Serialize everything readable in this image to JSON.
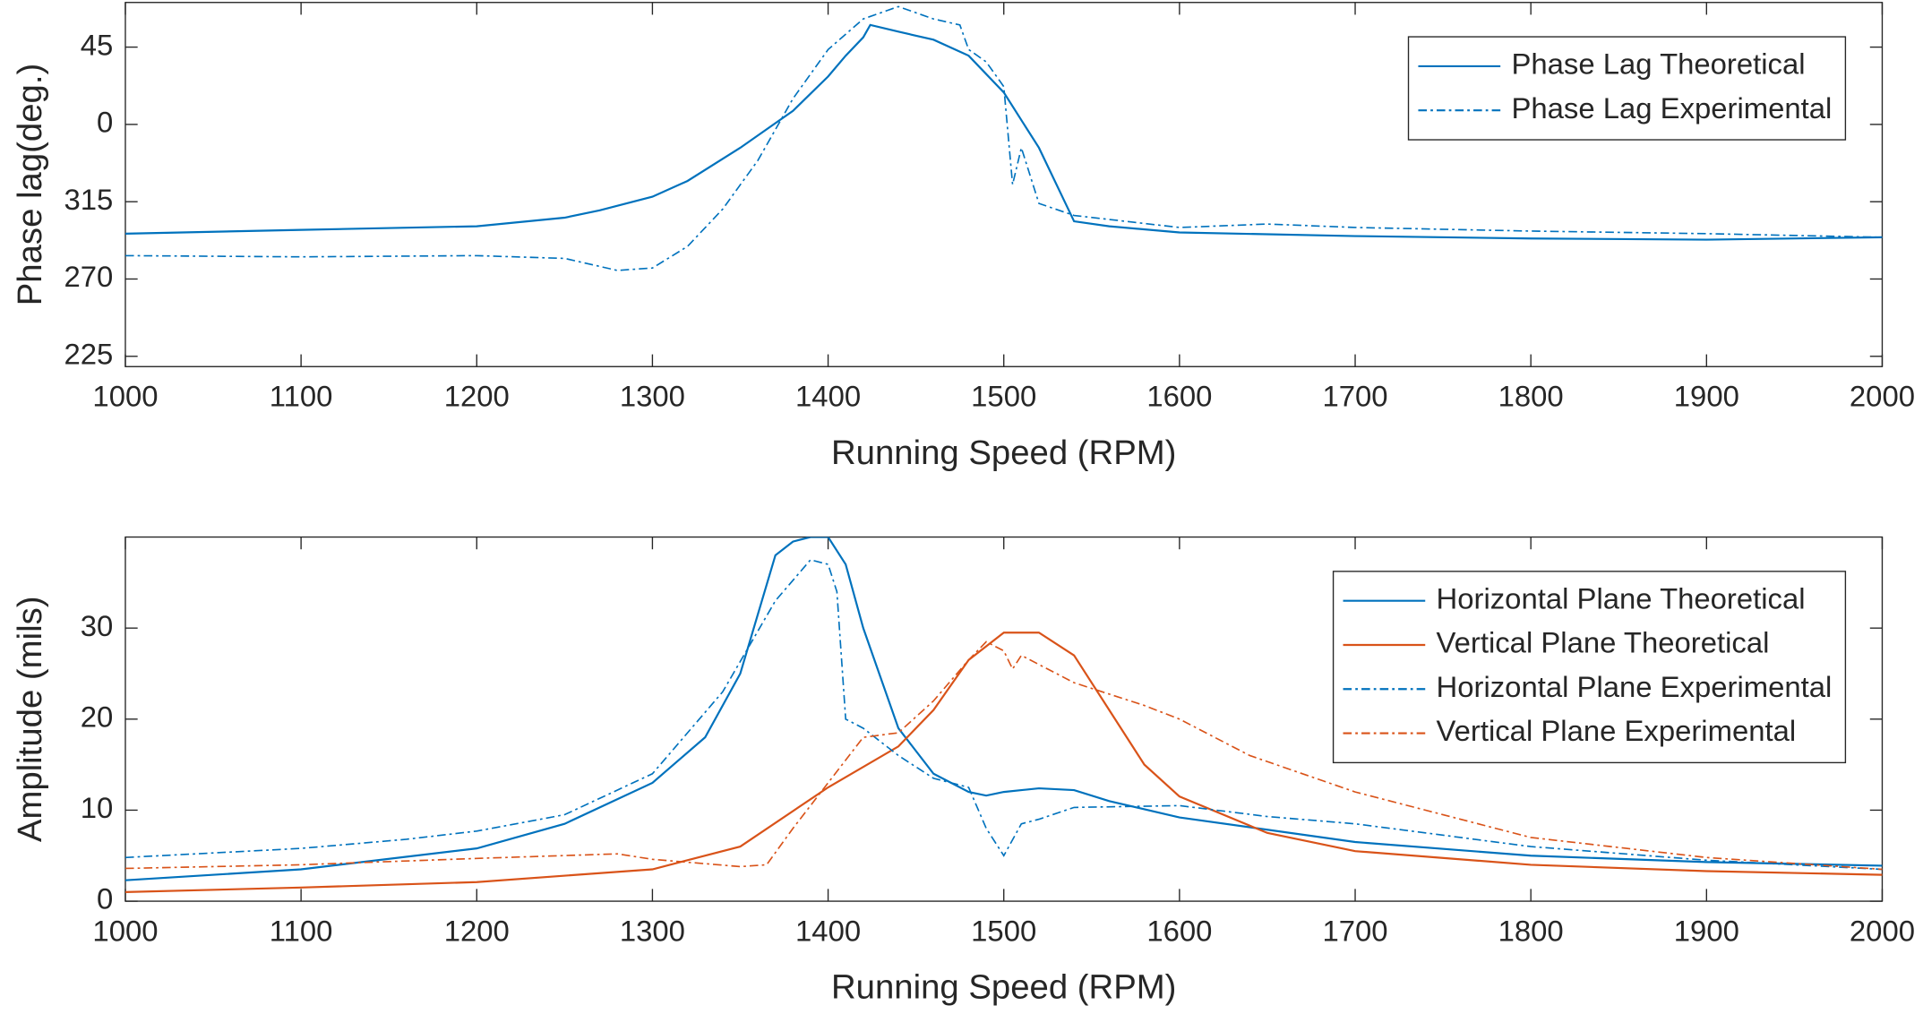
{
  "chart_data": [
    {
      "type": "line",
      "ylabel": "Phase lag(deg.)",
      "xlabel": "Running Speed (RPM)",
      "xlim": [
        1000,
        2000
      ],
      "xticks": [
        1000,
        1100,
        1200,
        1300,
        1400,
        1500,
        1600,
        1700,
        1800,
        1900,
        2000
      ],
      "ylim": [
        219,
        431
      ],
      "yticks": [
        225,
        270,
        315,
        {
          "value": 360,
          "label": "0"
        },
        {
          "value": 405,
          "label": "45"
        }
      ],
      "grid": false,
      "legend": "upper right",
      "series": [
        {
          "name": "Phase Lag Theoretical",
          "color": "#0072bd",
          "style": "solid",
          "x": [
            1000,
            1100,
            1200,
            1250,
            1270,
            1300,
            1320,
            1350,
            1380,
            1400,
            1410,
            1420,
            1424,
            1440,
            1460,
            1480,
            1500,
            1520,
            1540,
            1560,
            1600,
            1700,
            1800,
            1900,
            2000
          ],
          "values": [
            296.4,
            298.6,
            300.7,
            305.7,
            310,
            317.9,
            327.1,
            346.4,
            367.9,
            387.9,
            400,
            410.7,
            417.9,
            414,
            409.3,
            400,
            378.6,
            346.4,
            303.6,
            300.7,
            297.1,
            295,
            293.6,
            292.9,
            294.3
          ]
        },
        {
          "name": "Phase Lag Experimental",
          "color": "#0072bd",
          "style": "dashdot",
          "x": [
            1000,
            1100,
            1200,
            1250,
            1280,
            1300,
            1320,
            1340,
            1360,
            1380,
            1400,
            1420,
            1440,
            1460,
            1475,
            1480,
            1490,
            1500,
            1505,
            1510,
            1520,
            1540,
            1600,
            1650,
            1700,
            1800,
            1900,
            2000
          ],
          "values": [
            283.6,
            282.9,
            283.6,
            282,
            275,
            276.4,
            289,
            310.7,
            339,
            375,
            403.6,
            421.4,
            428.6,
            421.4,
            417.9,
            403.6,
            396.4,
            382,
            325,
            346.4,
            314,
            307,
            300,
            302,
            300,
            297.9,
            296.4,
            294.3
          ]
        }
      ]
    },
    {
      "type": "line",
      "ylabel": "Amplitude (mils)",
      "xlabel": "Running Speed (RPM)",
      "xlim": [
        1000,
        2000
      ],
      "xticks": [
        1000,
        1100,
        1200,
        1300,
        1400,
        1500,
        1600,
        1700,
        1800,
        1900,
        2000
      ],
      "ylim": [
        0,
        40
      ],
      "yticks": [
        0,
        10,
        20,
        30
      ],
      "grid": false,
      "legend": "upper right",
      "series": [
        {
          "name": "Horizontal Plane Theoretical",
          "color": "#0072bd",
          "style": "solid",
          "x": [
            1000,
            1100,
            1200,
            1250,
            1300,
            1330,
            1350,
            1370,
            1380,
            1390,
            1400,
            1410,
            1420,
            1440,
            1460,
            1480,
            1490,
            1500,
            1520,
            1540,
            1560,
            1600,
            1700,
            1800,
            1900,
            2000
          ],
          "values": [
            2.3,
            3.5,
            5.8,
            8.5,
            13,
            18,
            25,
            38,
            39.5,
            40,
            40,
            37,
            30,
            19,
            14,
            12,
            11.6,
            12,
            12.4,
            12.2,
            11,
            9.2,
            6.5,
            5,
            4.3,
            3.9
          ]
        },
        {
          "name": "Vertical Plane Theoretical",
          "color": "#d95319",
          "style": "solid",
          "x": [
            1000,
            1100,
            1200,
            1300,
            1350,
            1400,
            1440,
            1460,
            1480,
            1500,
            1520,
            1540,
            1560,
            1580,
            1600,
            1650,
            1700,
            1800,
            1900,
            2000
          ],
          "values": [
            1,
            1.5,
            2.1,
            3.5,
            6,
            12.5,
            17,
            21,
            26.5,
            29.5,
            29.5,
            27,
            21,
            15,
            11.5,
            7.5,
            5.5,
            4,
            3.3,
            2.9
          ]
        },
        {
          "name": "Horizontal Plane Experimental",
          "color": "#0072bd",
          "style": "dashdot",
          "x": [
            1000,
            1100,
            1160,
            1200,
            1250,
            1300,
            1340,
            1370,
            1390,
            1400,
            1405,
            1410,
            1420,
            1440,
            1460,
            1480,
            1490,
            1500,
            1510,
            1520,
            1540,
            1600,
            1650,
            1700,
            1800,
            1900,
            2000
          ],
          "values": [
            4.8,
            5.8,
            6.8,
            7.7,
            9.5,
            14,
            23,
            33,
            37.5,
            37,
            34,
            20,
            19,
            16,
            13.5,
            12.5,
            8,
            5,
            8.5,
            9,
            10.3,
            10.5,
            9.3,
            8.5,
            6,
            4.5,
            3.5
          ]
        },
        {
          "name": "Vertical Plane Experimental",
          "color": "#d95319",
          "style": "dashdot",
          "x": [
            1000,
            1100,
            1200,
            1280,
            1300,
            1350,
            1365,
            1380,
            1400,
            1420,
            1440,
            1460,
            1480,
            1490,
            1500,
            1505,
            1510,
            1540,
            1580,
            1600,
            1640,
            1700,
            1800,
            1900,
            2000
          ],
          "values": [
            3.6,
            4,
            4.7,
            5.2,
            4.6,
            3.8,
            4,
            8,
            13,
            18,
            18.5,
            22,
            26.5,
            28.5,
            27.5,
            25.5,
            27,
            24,
            21.5,
            20,
            16,
            12,
            7,
            4.8,
            3.5
          ]
        }
      ]
    }
  ]
}
